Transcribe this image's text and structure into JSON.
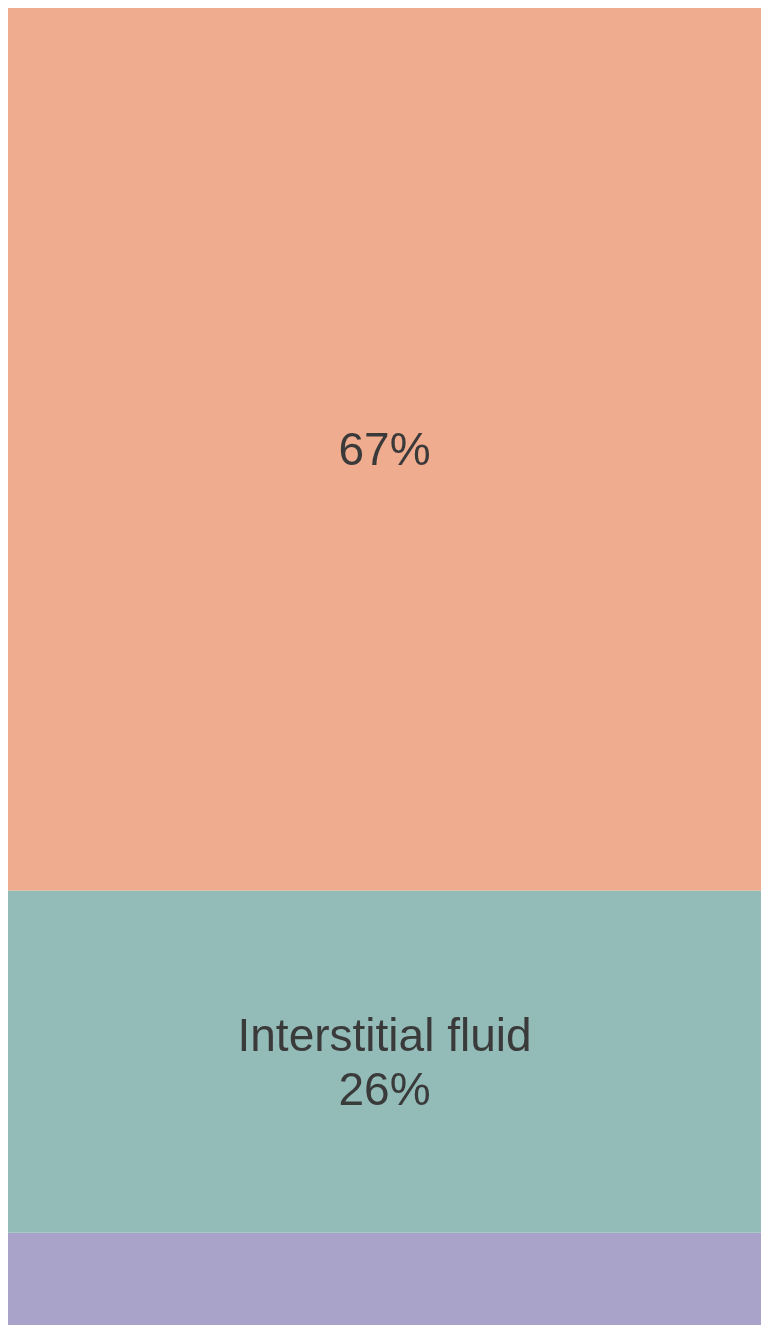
{
  "chart_data": {
    "type": "bar",
    "stacked": true,
    "categories": [
      null
    ],
    "legend": false,
    "series": [
      {
        "color": "#aaa3c9",
        "values": [
          7
        ],
        "value_labels": [
          null
        ]
      },
      {
        "name": "Interstitial fluid",
        "color": "#93bcb8",
        "values": [
          26
        ],
        "value_labels": [
          "26%"
        ]
      },
      {
        "color": "#f0ac8e",
        "values": [
          67
        ],
        "value_labels": [
          "67%"
        ]
      }
    ]
  }
}
